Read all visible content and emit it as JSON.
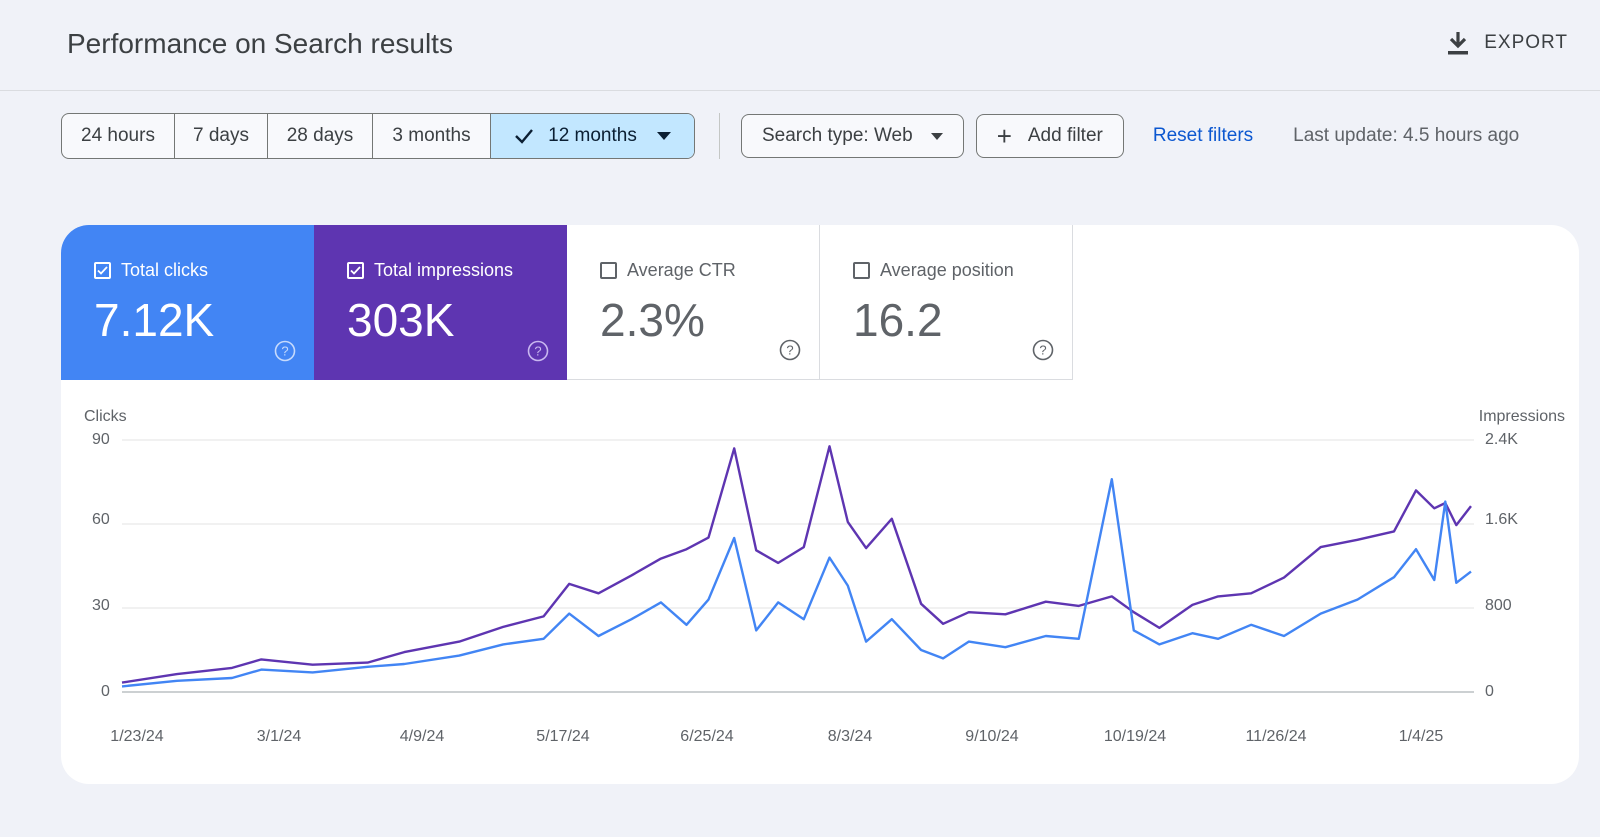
{
  "page": {
    "title": "Performance on Search results",
    "export_label": "EXPORT"
  },
  "filters": {
    "ranges": [
      "24 hours",
      "7 days",
      "28 days",
      "3 months",
      "12 months"
    ],
    "active_range": "12 months",
    "search_type": "Search type: Web",
    "add_filter": "Add filter",
    "reset": "Reset filters",
    "last_update": "Last update: 4.5 hours ago"
  },
  "metrics": [
    {
      "label": "Total clicks",
      "value": "7.12K",
      "checked": true
    },
    {
      "label": "Total impressions",
      "value": "303K",
      "checked": true
    },
    {
      "label": "Average CTR",
      "value": "2.3%",
      "checked": false
    },
    {
      "label": "Average position",
      "value": "16.2",
      "checked": false
    }
  ],
  "colors": {
    "clicks": "#4285f4",
    "impressions": "#5e35b1",
    "link": "#0b57d0",
    "active_chip": "#c2e7ff"
  },
  "chart_data": {
    "type": "line",
    "left_axis": {
      "title": "Clicks",
      "ticks": [
        "0",
        "30",
        "60",
        "90"
      ],
      "range": [
        0,
        90
      ]
    },
    "right_axis": {
      "title": "Impressions",
      "ticks": [
        "0",
        "800",
        "1.6K",
        "2.4K"
      ],
      "range": [
        0,
        2400
      ]
    },
    "x_ticks": [
      "1/23/24",
      "3/1/24",
      "4/9/24",
      "5/17/24",
      "6/25/24",
      "8/3/24",
      "9/10/24",
      "10/19/24",
      "11/26/24",
      "1/4/25"
    ],
    "x_range": [
      "2024-01-23",
      "2025-01-25"
    ],
    "grid": true,
    "series": [
      {
        "name": "Clicks",
        "axis": "left",
        "points": [
          [
            "2024-01-23",
            2
          ],
          [
            "2024-02-07",
            4
          ],
          [
            "2024-02-22",
            5
          ],
          [
            "2024-03-01",
            8
          ],
          [
            "2024-03-15",
            7
          ],
          [
            "2024-03-30",
            9
          ],
          [
            "2024-04-09",
            10
          ],
          [
            "2024-04-24",
            13
          ],
          [
            "2024-05-06",
            17
          ],
          [
            "2024-05-17",
            19
          ],
          [
            "2024-05-24",
            28
          ],
          [
            "2024-06-01",
            20
          ],
          [
            "2024-06-10",
            26
          ],
          [
            "2024-06-18",
            32
          ],
          [
            "2024-06-25",
            24
          ],
          [
            "2024-07-01",
            33
          ],
          [
            "2024-07-08",
            55
          ],
          [
            "2024-07-14",
            22
          ],
          [
            "2024-07-20",
            32
          ],
          [
            "2024-07-27",
            26
          ],
          [
            "2024-08-03",
            48
          ],
          [
            "2024-08-08",
            38
          ],
          [
            "2024-08-13",
            18
          ],
          [
            "2024-08-20",
            26
          ],
          [
            "2024-08-28",
            15
          ],
          [
            "2024-09-03",
            12
          ],
          [
            "2024-09-10",
            18
          ],
          [
            "2024-09-20",
            16
          ],
          [
            "2024-10-01",
            20
          ],
          [
            "2024-10-10",
            19
          ],
          [
            "2024-10-19",
            76
          ],
          [
            "2024-10-25",
            22
          ],
          [
            "2024-11-01",
            17
          ],
          [
            "2024-11-10",
            21
          ],
          [
            "2024-11-17",
            19
          ],
          [
            "2024-11-26",
            24
          ],
          [
            "2024-12-05",
            20
          ],
          [
            "2024-12-15",
            28
          ],
          [
            "2024-12-25",
            33
          ],
          [
            "2025-01-04",
            41
          ],
          [
            "2025-01-10",
            51
          ],
          [
            "2025-01-15",
            40
          ],
          [
            "2025-01-18",
            68
          ],
          [
            "2025-01-21",
            39
          ],
          [
            "2025-01-25",
            43
          ]
        ]
      },
      {
        "name": "Impressions",
        "axis": "right",
        "points": [
          [
            "2024-01-23",
            90
          ],
          [
            "2024-02-07",
            170
          ],
          [
            "2024-02-22",
            230
          ],
          [
            "2024-03-01",
            310
          ],
          [
            "2024-03-15",
            260
          ],
          [
            "2024-03-30",
            280
          ],
          [
            "2024-04-09",
            380
          ],
          [
            "2024-04-24",
            480
          ],
          [
            "2024-05-06",
            620
          ],
          [
            "2024-05-17",
            720
          ],
          [
            "2024-05-24",
            1030
          ],
          [
            "2024-06-01",
            940
          ],
          [
            "2024-06-10",
            1110
          ],
          [
            "2024-06-18",
            1270
          ],
          [
            "2024-06-25",
            1360
          ],
          [
            "2024-07-01",
            1470
          ],
          [
            "2024-07-08",
            2320
          ],
          [
            "2024-07-14",
            1350
          ],
          [
            "2024-07-20",
            1230
          ],
          [
            "2024-07-27",
            1380
          ],
          [
            "2024-08-03",
            2340
          ],
          [
            "2024-08-08",
            1620
          ],
          [
            "2024-08-13",
            1370
          ],
          [
            "2024-08-20",
            1650
          ],
          [
            "2024-08-28",
            840
          ],
          [
            "2024-09-03",
            650
          ],
          [
            "2024-09-10",
            760
          ],
          [
            "2024-09-20",
            740
          ],
          [
            "2024-10-01",
            860
          ],
          [
            "2024-10-10",
            820
          ],
          [
            "2024-10-19",
            910
          ],
          [
            "2024-10-25",
            760
          ],
          [
            "2024-11-01",
            610
          ],
          [
            "2024-11-10",
            830
          ],
          [
            "2024-11-17",
            910
          ],
          [
            "2024-11-26",
            940
          ],
          [
            "2024-12-05",
            1090
          ],
          [
            "2024-12-15",
            1380
          ],
          [
            "2024-12-25",
            1450
          ],
          [
            "2025-01-04",
            1530
          ],
          [
            "2025-01-10",
            1920
          ],
          [
            "2025-01-15",
            1750
          ],
          [
            "2025-01-18",
            1800
          ],
          [
            "2025-01-21",
            1590
          ],
          [
            "2025-01-25",
            1770
          ]
        ]
      }
    ]
  }
}
